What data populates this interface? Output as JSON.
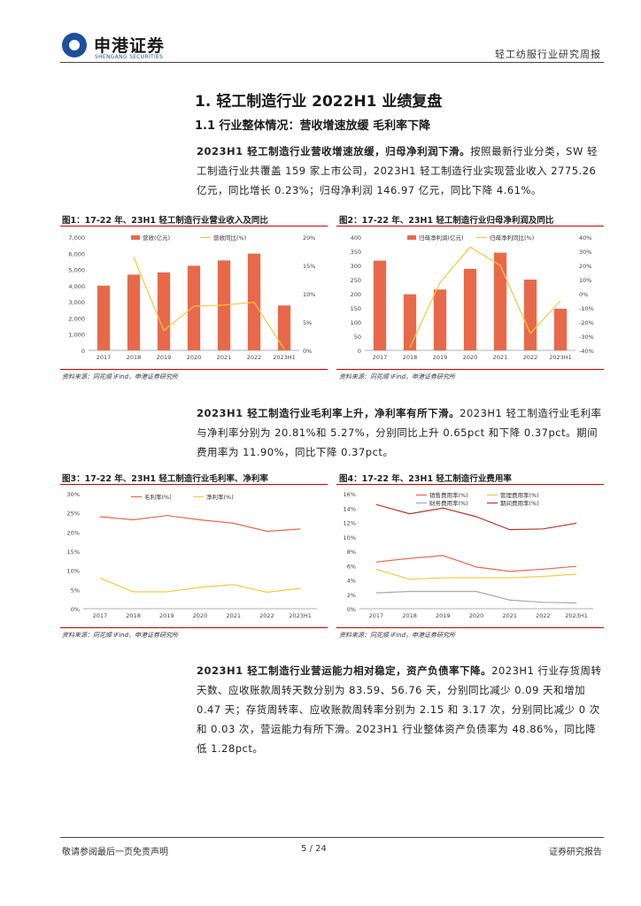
{
  "header": {
    "company_cn": "申港证券",
    "company_en": "SHENGANG SECURITIES",
    "report_type": "轻工纺服行业研究周报"
  },
  "section": {
    "h1": "1. 轻工制造行业 2022H1 业绩复盘",
    "h2": "1.1 行业整体情况：营收增速放缓 毛利率下降"
  },
  "para1": {
    "bold": "2023H1 轻工制造行业营收增速放缓，归母净利润下滑。",
    "text": "按照最新行业分类，SW 轻工制造行业共覆盖 159 家上市公司，2023H1 轻工制造行业实现营业收入 2775.26 亿元，同比增长 0.23%；归母净利润 146.97 亿元，同比下降 4.61%。"
  },
  "para2": {
    "bold": "2023H1 轻工制造行业毛利率上升，净利率有所下滑。",
    "text": "2023H1 轻工制造行业毛利率与净利率分别为 20.81%和 5.27%，分别同比上升 0.65pct 和下降 0.37pct。期间费用率为 11.90%，同比下降 0.37pct。"
  },
  "para3": {
    "bold": "2023H1 轻工制造行业营运能力相对稳定，资产负债率下降。",
    "text": "2023H1 行业存货周转天数、应收账款周转天数分别为 83.59、56.76 天，分别同比减少 0.09 天和增加 0.47 天；存货周转率、应收账款周转率分别为 2.15 和 3.17 次，分别同比减少 0 次和 0.03 次，营运能力有所下滑。2023H1 行业整体资产负债率为 48.86%，同比降低 1.28pct。"
  },
  "figures": {
    "fig1_title": "图1：17-22 年、23H1 轻工制造行业营业收入及同比",
    "fig2_title": "图2：17-22 年、23H1 轻工制造行业归母净利润及同比",
    "fig3_title": "图3：17-22 年、23H1 轻工制造行业毛利率、净利率",
    "fig4_title": "图4：17-22 年、23H1 轻工制造行业费用率",
    "source": "资料来源：同花顺 iFind，申港证券研究所"
  },
  "chart_data": [
    {
      "id": "fig1",
      "type": "bar+line",
      "categories": [
        "2017",
        "2018",
        "2019",
        "2020",
        "2021",
        "2022",
        "2023H1"
      ],
      "series": [
        {
          "name": "营收(亿元)",
          "kind": "bar",
          "axis": "left",
          "values": [
            4000,
            4680,
            4820,
            5230,
            5560,
            5980,
            2775
          ]
        },
        {
          "name": "营收同比(%)",
          "kind": "line",
          "axis": "right",
          "values": [
            null,
            16.5,
            3.5,
            7.8,
            8.0,
            8.5,
            0.2
          ]
        }
      ],
      "left_ticks": [
        "7,000",
        "6,000",
        "5,000",
        "4,000",
        "3,000",
        "2,000",
        "1,000",
        "0"
      ],
      "right_ticks": [
        "20%",
        "15%",
        "10%",
        "5%",
        "0%"
      ],
      "ylim_left": [
        0,
        7000
      ],
      "ylim_right": [
        0,
        20
      ]
    },
    {
      "id": "fig2",
      "type": "bar+line",
      "categories": [
        "2017",
        "2018",
        "2019",
        "2020",
        "2021",
        "2022",
        "2023H1"
      ],
      "series": [
        {
          "name": "归母净利润(亿元)",
          "kind": "bar",
          "axis": "left",
          "values": [
            317,
            198,
            215,
            288,
            345,
            250,
            147
          ]
        },
        {
          "name": "归母净利同比(%)",
          "kind": "line",
          "axis": "right",
          "values": [
            null,
            -38,
            8,
            33,
            20,
            -28,
            -5
          ]
        }
      ],
      "left_ticks": [
        "400",
        "350",
        "300",
        "250",
        "200",
        "150",
        "100",
        "50",
        "0"
      ],
      "right_ticks": [
        "40%",
        "30%",
        "20%",
        "10%",
        "0%",
        "-10%",
        "-20%",
        "-30%",
        "-40%"
      ],
      "ylim_left": [
        0,
        400
      ],
      "ylim_right": [
        -40,
        40
      ]
    },
    {
      "id": "fig3",
      "type": "line",
      "categories": [
        "2017",
        "2018",
        "2019",
        "2020",
        "2021",
        "2022",
        "2023H1"
      ],
      "series": [
        {
          "name": "毛利率(%)",
          "values": [
            24.0,
            23.2,
            24.3,
            23.2,
            22.3,
            20.2,
            20.8
          ]
        },
        {
          "name": "净利率(%)",
          "values": [
            8.0,
            4.4,
            4.4,
            5.6,
            6.3,
            4.3,
            5.3
          ]
        }
      ],
      "y_ticks": [
        "30%",
        "25%",
        "20%",
        "15%",
        "10%",
        "5%",
        "0%"
      ],
      "ylim": [
        0,
        30
      ]
    },
    {
      "id": "fig4",
      "type": "line",
      "categories": [
        "2017",
        "2018",
        "2019",
        "2020",
        "2021",
        "2022",
        "2023H1"
      ],
      "series": [
        {
          "name": "销售费用率(%)",
          "values": [
            6.5,
            7.0,
            7.4,
            5.8,
            5.2,
            5.5,
            5.9
          ]
        },
        {
          "name": "管理费用率(%)",
          "values": [
            5.5,
            4.1,
            4.3,
            4.3,
            4.3,
            4.5,
            4.8
          ]
        },
        {
          "name": "财务费用率(%)",
          "values": [
            2.2,
            2.4,
            2.4,
            2.4,
            1.2,
            0.9,
            0.8
          ]
        },
        {
          "name": "期间费用率(%)",
          "values": [
            14.5,
            13.2,
            14.0,
            12.8,
            11.0,
            11.1,
            11.9
          ]
        }
      ],
      "y_ticks": [
        "16%",
        "14%",
        "12%",
        "10%",
        "8%",
        "6%",
        "4%",
        "2%",
        "0%"
      ],
      "ylim": [
        0,
        16
      ]
    }
  ],
  "footer": {
    "disclaimer": "敬请参阅最后一页免责声明",
    "page": "5 / 24",
    "right": "证券研究报告"
  }
}
